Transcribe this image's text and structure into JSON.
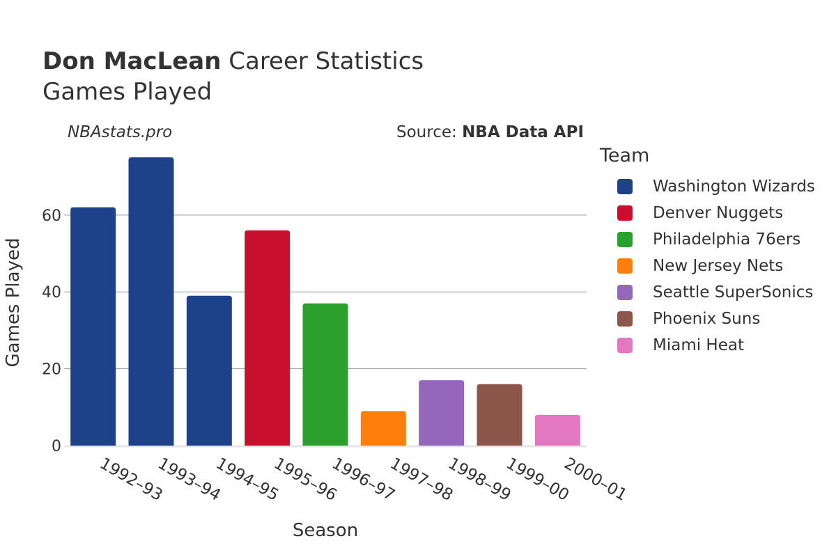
{
  "header": {
    "title_bold": "Don MacLean",
    "title_rest": " Career Statistics",
    "subtitle": "Games Played",
    "watermark": "NBAstats.pro",
    "source_prefix": "Source: ",
    "source_name": "NBA Data API"
  },
  "legend": {
    "title": "Team",
    "items": [
      {
        "label": "Washington Wizards",
        "color": "#1d4289"
      },
      {
        "label": "Denver Nuggets",
        "color": "#c8102e"
      },
      {
        "label": "Philadelphia 76ers",
        "color": "#2ca02c"
      },
      {
        "label": "New Jersey Nets",
        "color": "#ff7f0e"
      },
      {
        "label": "Seattle SuperSonics",
        "color": "#9467bd"
      },
      {
        "label": "Phoenix Suns",
        "color": "#8c564b"
      },
      {
        "label": "Miami Heat",
        "color": "#e377c2"
      }
    ]
  },
  "chart_data": {
    "type": "bar",
    "xlabel": "Season",
    "ylabel": "Games Played",
    "ylim": [
      0,
      77
    ],
    "yticks": [
      0,
      20,
      40,
      60
    ],
    "grid": true,
    "legend_position": "right",
    "categories": [
      "1992–93",
      "1993–94",
      "1994–95",
      "1995–96",
      "1996–97",
      "1997–98",
      "1998–99",
      "1999–00",
      "2000–01"
    ],
    "values": [
      62,
      75,
      39,
      56,
      37,
      9,
      17,
      16,
      8
    ],
    "teams": [
      "Washington Wizards",
      "Washington Wizards",
      "Washington Wizards",
      "Denver Nuggets",
      "Philadelphia 76ers",
      "New Jersey Nets",
      "Seattle SuperSonics",
      "Phoenix Suns",
      "Miami Heat"
    ]
  }
}
